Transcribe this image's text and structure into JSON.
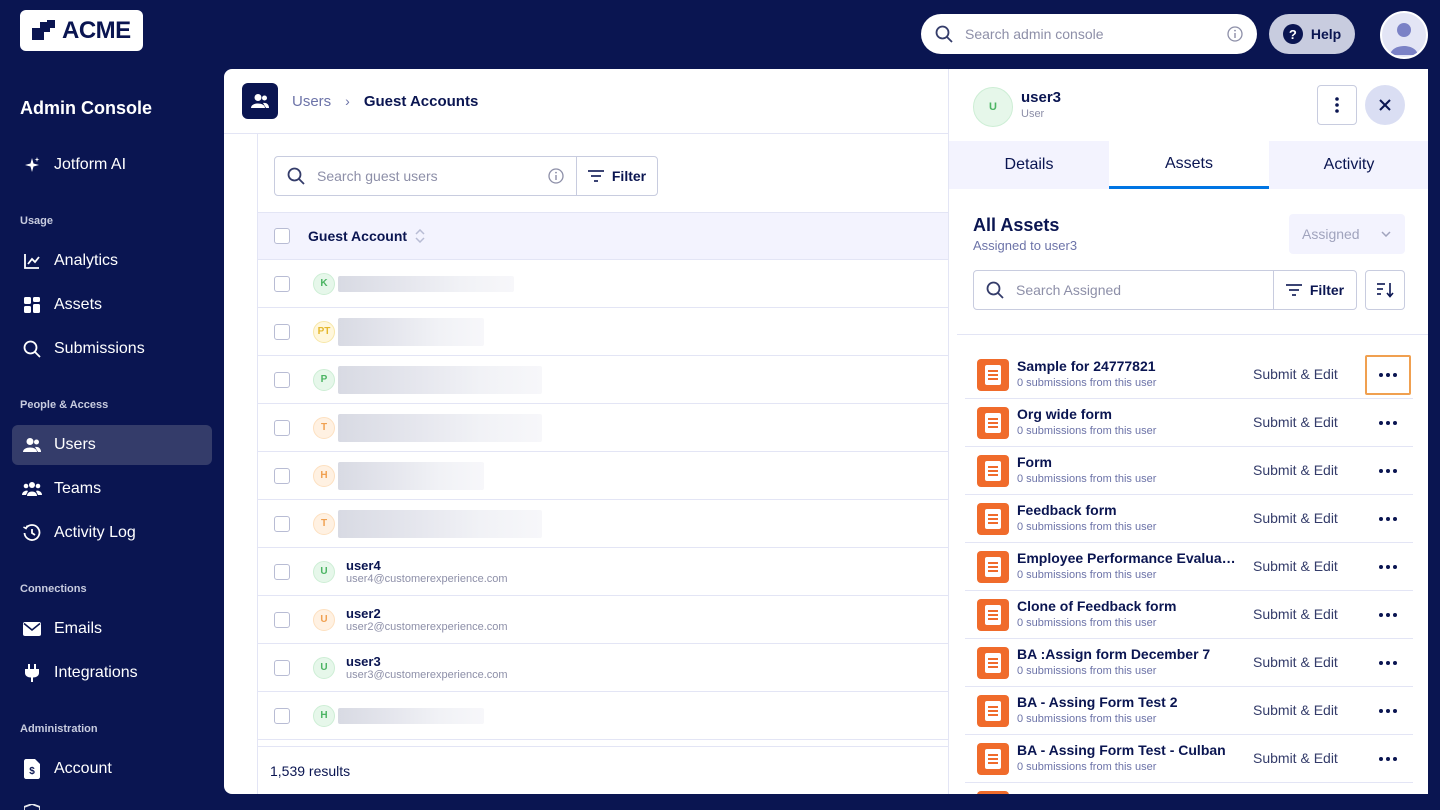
{
  "brand": {
    "logo_text": "ACME"
  },
  "topbar": {
    "search_placeholder": "Search admin console",
    "help_label": "Help"
  },
  "sidebar": {
    "title": "Admin Console",
    "ai_label": "Jotform AI",
    "sections": [
      "Usage",
      "People & Access",
      "Connections",
      "Administration"
    ],
    "items": [
      {
        "label": "Analytics"
      },
      {
        "label": "Assets"
      },
      {
        "label": "Submissions"
      },
      {
        "label": "Users"
      },
      {
        "label": "Teams"
      },
      {
        "label": "Activity Log"
      },
      {
        "label": "Emails"
      },
      {
        "label": "Integrations"
      },
      {
        "label": "Account"
      }
    ]
  },
  "breadcrumb": {
    "parent": "Users",
    "current": "Guest Accounts"
  },
  "guest_table": {
    "search_placeholder": "Search guest users",
    "filter_label": "Filter",
    "column_header": "Guest Account",
    "rows": [
      {
        "initials": "K"
      },
      {
        "initials": "PT"
      },
      {
        "initials": "P"
      },
      {
        "initials": "T"
      },
      {
        "initials": "H"
      },
      {
        "initials": "T"
      },
      {
        "initials": "U",
        "name": "user4",
        "email": "user4@customerexperience.com"
      },
      {
        "initials": "U",
        "name": "user2",
        "email": "user2@customerexperience.com"
      },
      {
        "initials": "U",
        "name": "user3",
        "email": "user3@customerexperience.com"
      },
      {
        "initials": "H"
      }
    ],
    "results": "1,539 results"
  },
  "panel": {
    "user_initial": "U",
    "user_name": "user3",
    "user_role": "User",
    "tabs": [
      "Details",
      "Assets",
      "Activity"
    ],
    "active_tab": "Assets",
    "assets_title": "All Assets",
    "assets_subtitle": "Assigned to user3",
    "assigned_dropdown": "Assigned",
    "search_placeholder": "Search Assigned",
    "filter_label": "Filter",
    "assets": [
      {
        "name": "Sample for 24777821",
        "sub": "0 submissions from this user",
        "perm": "Submit & Edit"
      },
      {
        "name": "Org wide form",
        "sub": "0 submissions from this user",
        "perm": "Submit & Edit"
      },
      {
        "name": "Form",
        "sub": "0 submissions from this user",
        "perm": "Submit & Edit"
      },
      {
        "name": "Feedback form",
        "sub": "0 submissions from this user",
        "perm": "Submit & Edit"
      },
      {
        "name": "Employee Performance Evaluat...",
        "sub": "0 submissions from this user",
        "perm": "Submit & Edit"
      },
      {
        "name": "Clone of Feedback form",
        "sub": "0 submissions from this user",
        "perm": "Submit & Edit"
      },
      {
        "name": "BA :Assign form December 7",
        "sub": "0 submissions from this user",
        "perm": "Submit & Edit"
      },
      {
        "name": "BA - Assing Form Test 2",
        "sub": "0 submissions from this user",
        "perm": "Submit & Edit"
      },
      {
        "name": "BA - Assing Form Test - Culban",
        "sub": "0 submissions from this user",
        "perm": "Submit & Edit"
      }
    ]
  },
  "colors": {
    "navy": "#0a1551",
    "accent_blue": "#0075e3",
    "form_orange": "#f06b2b",
    "focus_orange": "#f0a050"
  }
}
